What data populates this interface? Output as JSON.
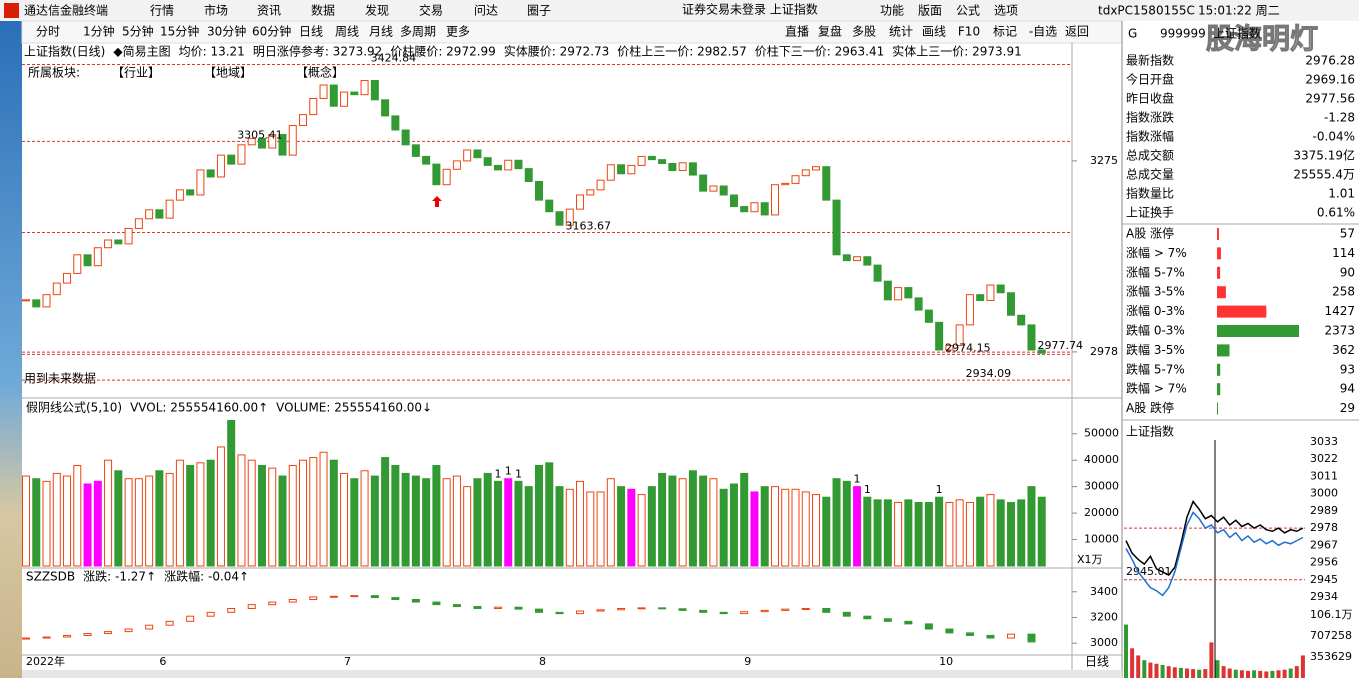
{
  "menu": {
    "app": "通达信金融终端",
    "items": [
      "行情",
      "市场",
      "资讯",
      "数据",
      "发现",
      "交易",
      "问达",
      "圈子"
    ],
    "status": "证券交易未登录  上证指数",
    "right": [
      "功能",
      "版面",
      "公式",
      "选项"
    ],
    "terminal": "tdxPC1580155C",
    "clock": "15:01:22 周二"
  },
  "watermark": "股海明灯",
  "toolbar": {
    "periods": [
      "分时",
      "1分钟",
      "5分钟",
      "15分钟",
      "30分钟",
      "60分钟",
      "日线",
      "周线",
      "月线",
      "多周期",
      "更多"
    ],
    "active": 6,
    "right": [
      "直播",
      "复盘",
      "多股",
      "统计",
      "画线",
      "F10",
      "标记",
      "-自选",
      "返回"
    ]
  },
  "info_line": [
    {
      "text": "上证指数(日线)",
      "color": "#000"
    },
    {
      "text": "◆简易主图",
      "color": "#000"
    },
    {
      "text": "均价: 13.21",
      "color": "#d00"
    },
    {
      "text": "明日涨停参考: 3273.92",
      "color": "#d00"
    },
    {
      "text": "价柱腰价: 2972.99",
      "color": "#d00"
    },
    {
      "text": "实体腰价: 2972.73",
      "color": "#d00"
    },
    {
      "text": "价柱上三一价: 2982.57",
      "color": "#d00"
    },
    {
      "text": "价柱下三一价: 2963.41",
      "color": "#d00"
    },
    {
      "text": "实体上三一价: 2973.91",
      "color": "#d00"
    }
  ],
  "sector_line": [
    "所属板块:",
    "【行业】",
    "【地域】",
    "【概念】"
  ],
  "future_note": "用到未来数据",
  "main_chart": {
    "type": "candlestick",
    "ylim": [
      2911,
      3463
    ],
    "yticks": [
      3275,
      2978
    ],
    "closes": [
      3059,
      3048,
      3067,
      3085,
      3100,
      3129,
      3112,
      3140,
      3152,
      3146,
      3170,
      3185,
      3199,
      3186,
      3214,
      3230,
      3222,
      3261,
      3250,
      3284,
      3270,
      3300,
      3310,
      3295,
      3316,
      3284,
      3330,
      3347,
      3372,
      3393,
      3360,
      3382,
      3378,
      3400,
      3370,
      3345,
      3323,
      3300,
      3282,
      3270,
      3238,
      3262,
      3275,
      3292,
      3280,
      3268,
      3261,
      3276,
      3263,
      3243,
      3214,
      3196,
      3175,
      3200,
      3222,
      3230,
      3245,
      3269,
      3255,
      3268,
      3282,
      3277,
      3271,
      3260,
      3272,
      3253,
      3228,
      3236,
      3222,
      3204,
      3196,
      3210,
      3191,
      3238,
      3240,
      3252,
      3261,
      3266,
      3214,
      3129,
      3120,
      3126,
      3113,
      3088,
      3059,
      3078,
      3062,
      3043,
      3024,
      2981,
      2988,
      3020,
      3067,
      3058,
      3082,
      3070,
      3035,
      3020,
      2981,
      2976
    ],
    "annotations": [
      {
        "label": "3424.84",
        "value": 3424.84,
        "index": 33
      },
      {
        "label": "3305.41",
        "value": 3305.41,
        "index": 20
      },
      {
        "label": "3163.67",
        "value": 3163.67,
        "index": 52
      },
      {
        "label": "2974.15",
        "value": 2974.15,
        "index": 89
      },
      {
        "label": "2977.74",
        "value": 2977.74,
        "index": 98
      },
      {
        "label": "2934.09",
        "value": 2934.09,
        "index": 91
      }
    ],
    "x_labels": [
      {
        "label": "2022年",
        "index": 0
      },
      {
        "label": "6",
        "index": 13
      },
      {
        "label": "7",
        "index": 31
      },
      {
        "label": "8",
        "index": 50
      },
      {
        "label": "9",
        "index": 70
      },
      {
        "label": "10",
        "index": 89
      }
    ],
    "period_label": "日线"
  },
  "volume_chart": {
    "type": "bar",
    "header": [
      {
        "text": "假阴线公式(5,10)",
        "color": "#000"
      },
      {
        "text": "VVOL: 255554160.00↑",
        "color": "#d00"
      },
      {
        "text": "VOLUME: 255554160.00↓",
        "color": "#00c"
      }
    ],
    "unit_label": "X1万",
    "ylim": [
      0,
      62000
    ],
    "yticks": [
      50000,
      40000,
      30000,
      20000,
      10000
    ],
    "highlight": [
      6,
      7,
      47,
      59,
      71,
      81
    ],
    "values": [
      34000,
      33000,
      32000,
      35000,
      34000,
      38000,
      31000,
      32000,
      40000,
      36000,
      33000,
      33000,
      34000,
      36000,
      35000,
      40000,
      38000,
      39000,
      40000,
      45000,
      55000,
      42000,
      40000,
      38000,
      37000,
      34000,
      38000,
      40000,
      41000,
      43000,
      40000,
      35000,
      33000,
      36000,
      34000,
      41000,
      38000,
      35000,
      34000,
      33000,
      38000,
      33000,
      34000,
      30000,
      33000,
      35000,
      32000,
      33000,
      32000,
      30000,
      38000,
      39000,
      30000,
      29000,
      32000,
      28000,
      28000,
      33000,
      30000,
      29000,
      27000,
      30000,
      35000,
      34000,
      33000,
      36000,
      34000,
      33000,
      29000,
      31000,
      35000,
      28000,
      30000,
      30000,
      29000,
      29000,
      28000,
      27000,
      26000,
      33000,
      32000,
      30000,
      26000,
      25000,
      25000,
      24000,
      25000,
      24000,
      24000,
      26000,
      24000,
      25000,
      24000,
      26000,
      27000,
      25000,
      24000,
      25000,
      30000,
      26000
    ],
    "flags": [
      {
        "index": 46,
        "label": "1"
      },
      {
        "index": 47,
        "label": "1"
      },
      {
        "index": 48,
        "label": "1"
      },
      {
        "index": 81,
        "label": "1"
      },
      {
        "index": 82,
        "label": "1"
      },
      {
        "index": 89,
        "label": "1"
      }
    ]
  },
  "index_chart": {
    "type": "candlestick",
    "header": [
      {
        "text": "SZZSDB",
        "color": "#000"
      },
      {
        "text": "涨跌: -1.27↑",
        "color": "#d00"
      },
      {
        "text": "涨跌幅: -0.04↑",
        "color": "#d8b800"
      }
    ],
    "ylim": [
      2908,
      3554
    ],
    "yticks": [
      3400,
      3200,
      3000
    ],
    "closes": [
      3040,
      3048,
      3060,
      3075,
      3090,
      3110,
      3140,
      3170,
      3210,
      3240,
      3270,
      3300,
      3320,
      3340,
      3360,
      3365,
      3370,
      3355,
      3340,
      3320,
      3300,
      3285,
      3270,
      3280,
      3265,
      3240,
      3230,
      3250,
      3260,
      3270,
      3275,
      3268,
      3255,
      3240,
      3230,
      3245,
      3255,
      3265,
      3270,
      3240,
      3210,
      3190,
      3170,
      3150,
      3110,
      3080,
      3060,
      3040,
      3070,
      3010
    ]
  },
  "quote": {
    "code_prefix": "G",
    "code": "999999",
    "name": "上证指数",
    "rows": [
      {
        "label": "最新指数",
        "value": "2976.28",
        "color": "#090"
      },
      {
        "label": "今日开盘",
        "value": "2969.16",
        "color": "#090"
      },
      {
        "label": "昨日收盘",
        "value": "2977.56",
        "color": "#000"
      },
      {
        "label": "指数涨跌",
        "value": "-1.28",
        "color": "#090"
      },
      {
        "label": "指数涨幅",
        "value": "-0.04%",
        "color": "#090"
      },
      {
        "label": "总成交额",
        "value": "3375.19亿",
        "color": "#000"
      },
      {
        "label": "总成交量",
        "value": "25555.4万",
        "color": "#000"
      },
      {
        "label": "指数量比",
        "value": "1.01",
        "color": "#d00"
      },
      {
        "label": "上证换手",
        "value": "0.61%",
        "color": "#000"
      }
    ]
  },
  "breadth": {
    "type": "bar",
    "categories": [
      "A股 涨停",
      "涨幅 > 7%",
      "涨幅 5-7%",
      "涨幅 3-5%",
      "涨幅 0-3%",
      "跌幅 0-3%",
      "跌幅 3-5%",
      "跌幅 5-7%",
      "跌幅 > 7%",
      "A股 跌停"
    ],
    "values": [
      57,
      114,
      90,
      258,
      1427,
      2373,
      362,
      93,
      94,
      29
    ],
    "colors": [
      "#f33",
      "#f33",
      "#f33",
      "#f33",
      "#f33",
      "#393",
      "#393",
      "#393",
      "#393",
      "#393"
    ]
  },
  "intraday": {
    "type": "line",
    "title": "上证指数",
    "ylim": [
      2934,
      3033
    ],
    "yticks": [
      3033,
      3022,
      3011,
      3000,
      2989,
      2978,
      2967,
      2956,
      2945,
      2934
    ],
    "reference": 2978,
    "series": [
      {
        "color": "#000",
        "values": [
          2970,
          2962,
          2958,
          2955,
          2960,
          2952,
          2950,
          2948,
          2953,
          2968,
          2985,
          2995,
          2990,
          2984,
          2986,
          2982,
          2985,
          2980,
          2983,
          2979,
          2981,
          2978,
          2980,
          2977,
          2976,
          2978,
          2975,
          2977,
          2976,
          2978
        ]
      },
      {
        "color": "#1e6fd0",
        "values": [
          2965,
          2958,
          2950,
          2945,
          2940,
          2938,
          2935,
          2940,
          2950,
          2965,
          2980,
          2988,
          2984,
          2978,
          2980,
          2975,
          2977,
          2972,
          2975,
          2970,
          2973,
          2969,
          2971,
          2968,
          2970,
          2967,
          2969,
          2968,
          2970,
          2972
        ]
      }
    ],
    "annotation": {
      "label": "2945.01",
      "value": 2945.01
    },
    "volume_ylim": [
      0,
      1061000
    ],
    "volume_yticks": [
      {
        "value": 1061000,
        "label": "106.1万"
      },
      707258,
      353629
    ],
    "volume": [
      900000,
      500000,
      380000,
      300000,
      260000,
      240000,
      220000,
      200000,
      180000,
      170000,
      160000,
      150000,
      140000,
      150000,
      600000,
      300000,
      200000,
      160000,
      140000,
      130000,
      120000,
      130000,
      120000,
      110000,
      120000,
      130000,
      140000,
      160000,
      200000,
      380000
    ]
  }
}
